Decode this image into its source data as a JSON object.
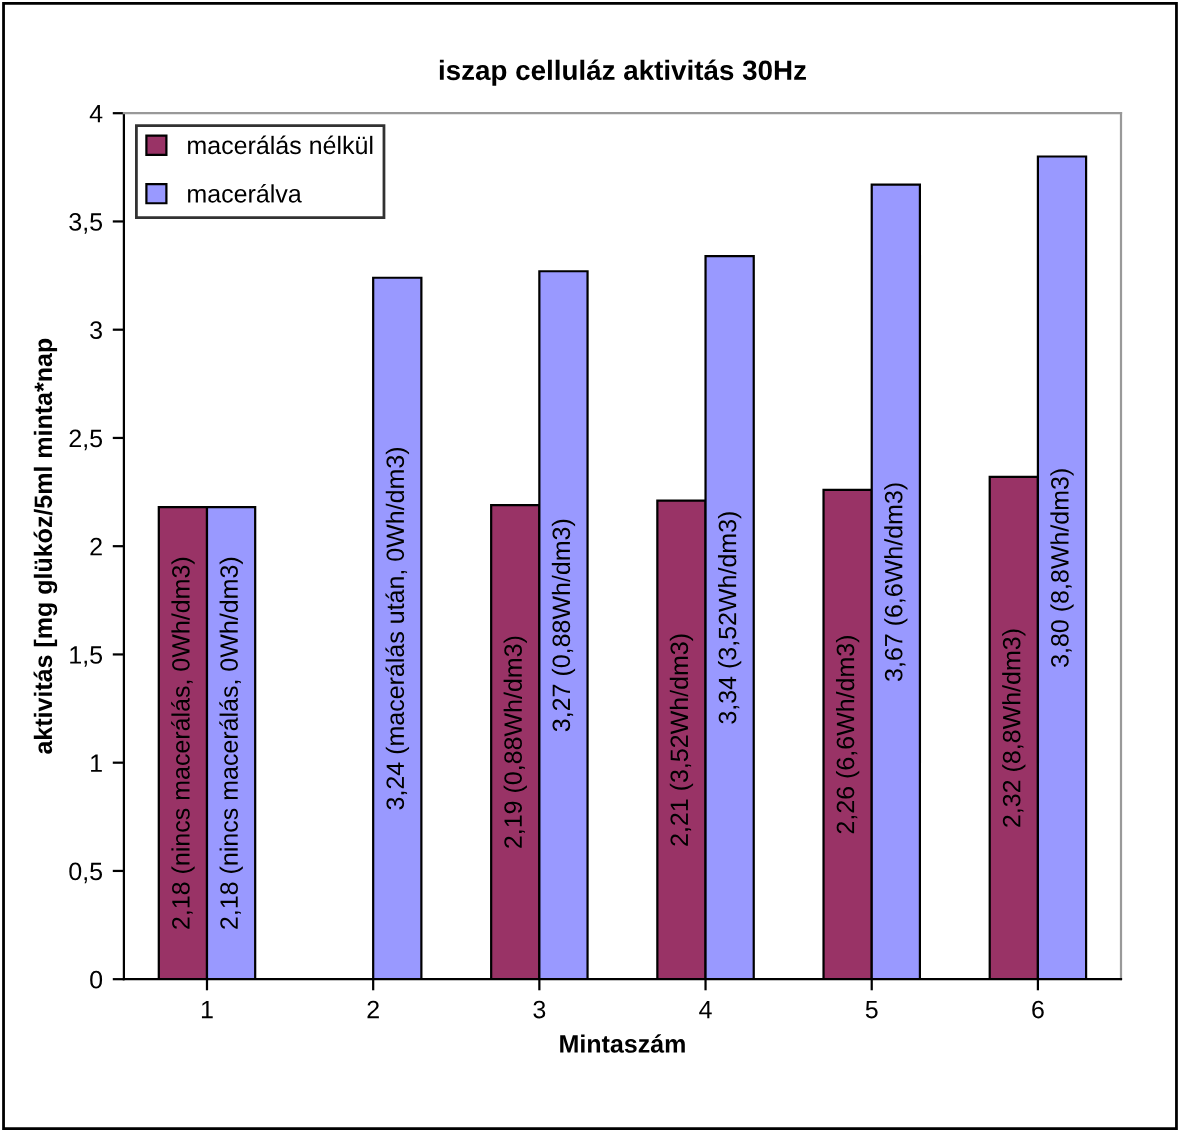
{
  "chart_data": {
    "type": "bar",
    "title": "iszap celluláz aktivitás 30Hz",
    "xlabel": "Mintaszám",
    "ylabel": "aktivitás [mg glükóz/5ml minta*nap",
    "categories": [
      "1",
      "2",
      "3",
      "4",
      "5",
      "6"
    ],
    "series": [
      {
        "name": "macerálás nélkül",
        "color": "#993366",
        "values": [
          2.18,
          null,
          2.19,
          2.21,
          2.26,
          2.32
        ],
        "value_labels": [
          "2,18 (nincs macerálás, 0Wh/dm3)",
          null,
          "2,19 (0,88Wh/dm3)",
          "2,21 (3,52Wh/dm3)",
          "2,26 (6,6Wh/dm3)",
          "2,32 (8,8Wh/dm3)"
        ]
      },
      {
        "name": "macerálva",
        "color": "#9999ff",
        "values": [
          2.18,
          3.24,
          3.27,
          3.34,
          3.67,
          3.8
        ],
        "value_labels": [
          "2,18 (nincs macerálás, 0Wh/dm3)",
          "3,24 (macerálás után, 0Wh/dm3)",
          "3,27 (0,88Wh/dm3)",
          "3,34 (3,52Wh/dm3)",
          "3,67 (6,6Wh/dm3)",
          "3,80 (8,8Wh/dm3)"
        ]
      }
    ],
    "ylim": [
      0,
      4
    ],
    "yticks": [
      0,
      {
        "value": 0.5,
        "label": "0,5"
      },
      1,
      {
        "value": 1.5,
        "label": "1,5"
      },
      2,
      {
        "value": 2.5,
        "label": "2,5"
      },
      3,
      {
        "value": 3.5,
        "label": "3,5"
      },
      4
    ],
    "grid": false,
    "legend": "top left"
  }
}
